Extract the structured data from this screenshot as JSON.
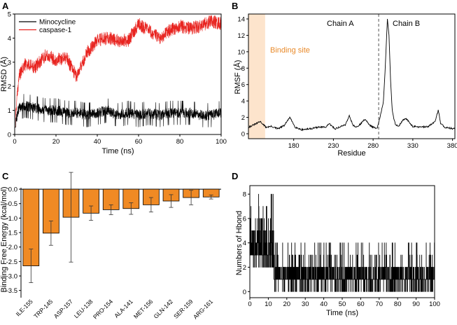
{
  "chart_data": [
    {
      "panel": "A",
      "type": "line",
      "xlabel": "Time (ns)",
      "ylabel": "RMSD (Å)",
      "xlim": [
        0,
        100
      ],
      "ylim": [
        0,
        5
      ],
      "xticks": [
        "0",
        "20",
        "40",
        "60",
        "80",
        "100"
      ],
      "yticks": [
        "0",
        "1",
        "2",
        "3",
        "4",
        "5"
      ],
      "legend_position": "top-left",
      "series": [
        {
          "name": "Minocycline",
          "color": "#000000",
          "x": [
            0,
            2,
            5,
            10,
            15,
            20,
            25,
            30,
            35,
            40,
            45,
            50,
            55,
            60,
            65,
            70,
            75,
            80,
            85,
            90,
            95,
            100
          ],
          "y": [
            0.3,
            1.1,
            1.2,
            1.1,
            1.0,
            1.0,
            0.9,
            0.9,
            0.8,
            0.9,
            1.0,
            0.8,
            0.9,
            0.8,
            0.9,
            0.8,
            0.9,
            0.9,
            0.9,
            0.8,
            0.8,
            0.9
          ]
        },
        {
          "name": "caspase-1",
          "color": "#e8231f",
          "x": [
            0,
            2,
            5,
            10,
            15,
            20,
            25,
            30,
            35,
            40,
            45,
            50,
            55,
            60,
            65,
            70,
            75,
            80,
            85,
            90,
            95,
            100
          ],
          "y": [
            0.3,
            2.4,
            2.9,
            2.8,
            3.3,
            3.1,
            3.2,
            2.4,
            3.4,
            3.9,
            4.0,
            3.9,
            3.9,
            4.6,
            4.3,
            4.0,
            4.3,
            4.5,
            4.4,
            4.5,
            4.7,
            4.6
          ]
        }
      ]
    },
    {
      "panel": "B",
      "type": "line",
      "xlabel": "Residue",
      "ylabel": "RMSF (Å)",
      "xlim": [
        123,
        383
      ],
      "ylim": [
        -0.6,
        14.6
      ],
      "xticks": [
        "180",
        "230",
        "280",
        "330",
        "380"
      ],
      "xtick_values": [
        180,
        230,
        280,
        330,
        380
      ],
      "yticks": [
        "0",
        "2",
        "4",
        "6",
        "8",
        "10",
        "12",
        "14"
      ],
      "annotations": {
        "chain_a": "Chain A",
        "chain_b": "Chain B",
        "binding_site": "Binding site"
      },
      "binding_site_range": [
        123,
        144
      ],
      "chain_divider": 287,
      "series": [
        {
          "name": "RMSF",
          "color": "#000000",
          "x": [
            123,
            130,
            138,
            145,
            152,
            160,
            168,
            175,
            182,
            190,
            200,
            210,
            220,
            225,
            232,
            240,
            245,
            250,
            255,
            260,
            265,
            270,
            275,
            280,
            285,
            290,
            293,
            295,
            298,
            300,
            302,
            304,
            306,
            308,
            312,
            318,
            322,
            330,
            340,
            350,
            358,
            362,
            365,
            370,
            375,
            383
          ],
          "y": [
            0.8,
            1.1,
            1.5,
            0.8,
            0.9,
            0.6,
            1.0,
            2.0,
            0.8,
            0.5,
            0.6,
            0.8,
            0.8,
            1.2,
            0.6,
            0.9,
            1.1,
            2.2,
            1.0,
            0.8,
            1.3,
            1.8,
            1.1,
            0.8,
            0.6,
            2.5,
            4.0,
            7.5,
            14.0,
            12.0,
            6.5,
            3.0,
            1.8,
            1.2,
            0.9,
            1.7,
            1.8,
            0.9,
            0.8,
            0.9,
            1.5,
            2.9,
            1.3,
            0.8,
            0.7,
            0.6
          ]
        }
      ]
    },
    {
      "panel": "C",
      "type": "bar",
      "ylabel": "Binding Free Energy (kcal/mol)",
      "ylim": [
        -3.75,
        0.05
      ],
      "yticks": [
        "0.0",
        "-0.5",
        "-1.0",
        "-1.5",
        "-2.0",
        "-2.5",
        "-3.0",
        "-3.5"
      ],
      "ytick_values": [
        0,
        -0.5,
        -1.0,
        -1.5,
        -2.0,
        -2.5,
        -3.0,
        -3.5
      ],
      "bar_color": "#f08a24",
      "categories": [
        "ILE-155",
        "TRP-145",
        "ASP-157",
        "LEU-138",
        "PRO-154",
        "ALA-141",
        "MET-156",
        "GLN-142",
        "SER-159",
        "ARG-161"
      ],
      "values": [
        -2.65,
        -1.52,
        -0.97,
        -0.83,
        -0.71,
        -0.67,
        -0.54,
        -0.41,
        -0.29,
        -0.27
      ],
      "errors": [
        0.58,
        0.42,
        1.55,
        0.25,
        0.17,
        0.2,
        0.25,
        0.22,
        0.25,
        0.07
      ]
    },
    {
      "panel": "D",
      "type": "line",
      "xlabel": "Time (ns)",
      "ylabel": "Numbers of Hbond",
      "xlim": [
        0,
        100
      ],
      "ylim": [
        -0.5,
        8.7
      ],
      "xticks": [
        "0",
        "10",
        "20",
        "30",
        "40",
        "50",
        "60",
        "70",
        "80",
        "90",
        "100"
      ],
      "yticks": [
        "0",
        "2",
        "4",
        "6",
        "8"
      ],
      "series": [
        {
          "name": "Hbond",
          "color": "#000000",
          "x": [
            0,
            5,
            10,
            13,
            15,
            20,
            30,
            40,
            50,
            60,
            70,
            80,
            90,
            100
          ],
          "y": [
            1,
            4,
            3,
            2,
            1,
            1,
            1,
            1,
            1,
            1,
            1,
            1,
            1,
            1
          ]
        }
      ]
    }
  ]
}
